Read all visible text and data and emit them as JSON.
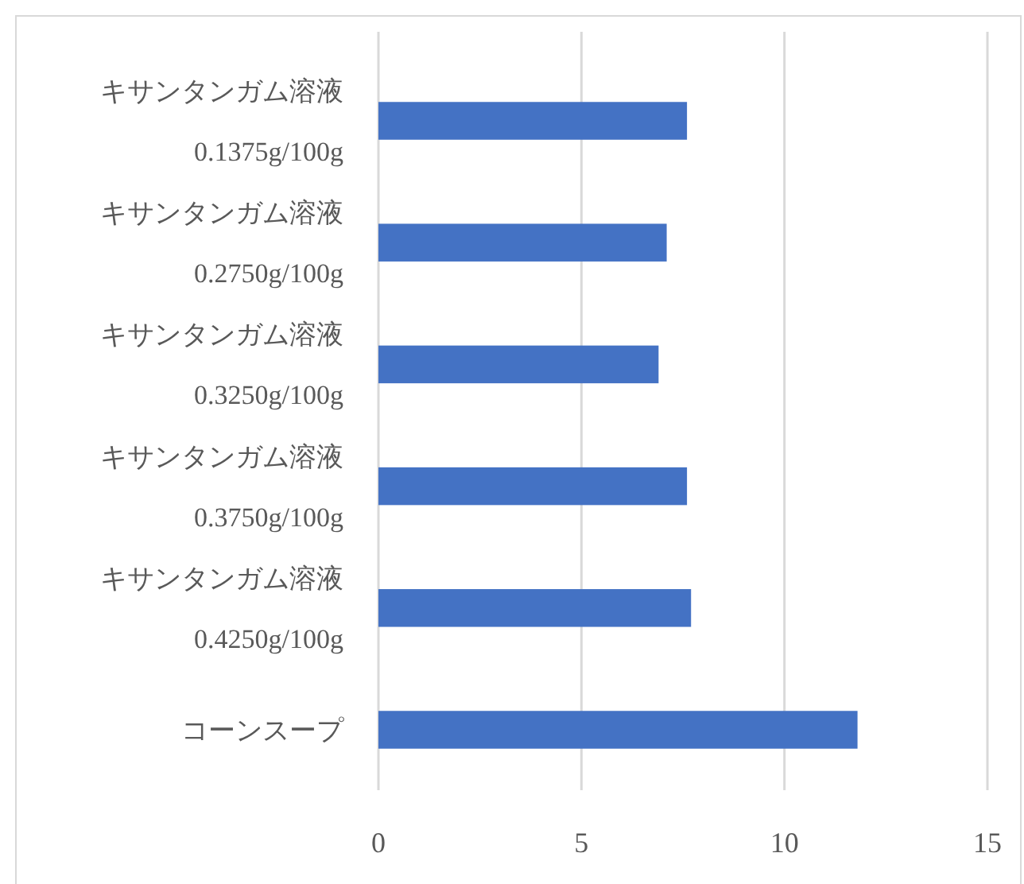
{
  "chart_data": {
    "type": "bar",
    "orientation": "horizontal",
    "categories": [
      "キサンタンガム溶液 0.1375g/100g",
      "キサンタンガム溶液 0.2750g/100g",
      "キサンタンガム溶液 0.3250g/100g",
      "キサンタンガム溶液 0.3750g/100g",
      "キサンタンガム溶液 0.4250g/100g",
      "コーンスープ"
    ],
    "values": [
      7.6,
      7.1,
      6.9,
      7.6,
      7.7,
      11.8
    ],
    "color": "#4472c4",
    "xlim": [
      0,
      15
    ],
    "xticks": [
      0,
      5,
      10,
      15
    ],
    "grid": "x"
  }
}
